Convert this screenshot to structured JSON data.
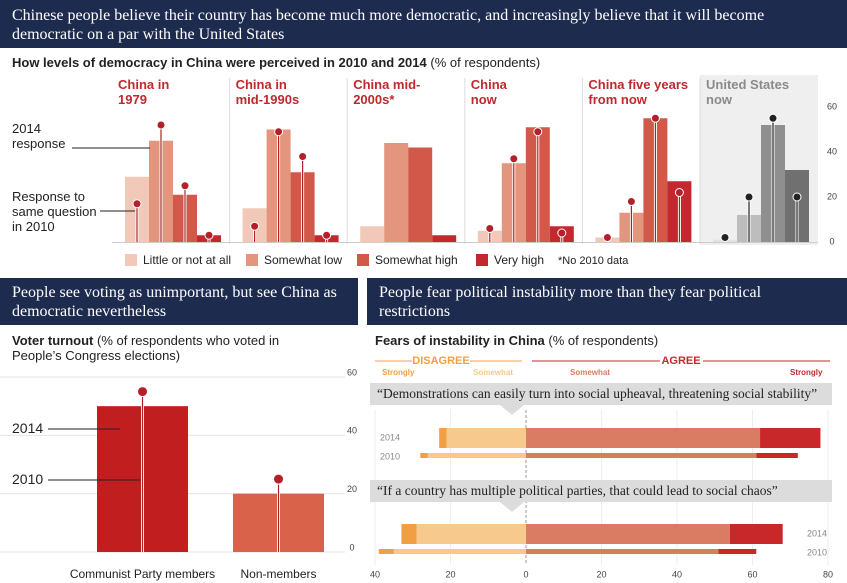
{
  "header": {
    "title": "Chinese people believe their country has become much more democratic, and increasingly believe that it will become democratic on a par with the United States"
  },
  "chart_data": [
    {
      "type": "panel-bar",
      "title": "How levels of democracy in China were perceived in 2010 and 2014",
      "subtitle": "(% of respondents)",
      "categories": [
        "Little or not at all",
        "Somewhat low",
        "Somewhat high",
        "Very high"
      ],
      "colors": [
        "#f2c9b9",
        "#e3957e",
        "#d2594a",
        "#c4282f"
      ],
      "annotations": [
        "2014 response",
        "Response to same question in 2010",
        "*No 2010 data"
      ],
      "ylim": [
        0,
        60
      ],
      "yticks": [
        0,
        20,
        40,
        60
      ],
      "panels": [
        {
          "name": "China in 1979",
          "title_color": "#c0282e",
          "dot_color": "#b3202a",
          "values": [
            29,
            45,
            21,
            3
          ],
          "values_2010": [
            17,
            52,
            25,
            3
          ]
        },
        {
          "name": "China in mid-1990s",
          "title_color": "#c0282e",
          "dot_color": "#b3202a",
          "values": [
            15,
            50,
            31,
            3
          ],
          "values_2010": [
            7,
            49,
            38,
            3
          ]
        },
        {
          "name": "China mid-2000s*",
          "title_color": "#c0282e",
          "dot_color": "#b3202a",
          "values": [
            7,
            44,
            42,
            3
          ],
          "values_2010": [
            null,
            null,
            null,
            null
          ]
        },
        {
          "name": "China now",
          "title_color": "#c0282e",
          "dot_color": "#b3202a",
          "values": [
            5,
            35,
            51,
            7
          ],
          "values_2010": [
            6,
            37,
            49,
            4
          ]
        },
        {
          "name": "China five years from now",
          "title_color": "#c0282e",
          "dot_color": "#b3202a",
          "values": [
            2,
            13,
            55,
            27
          ],
          "values_2010": [
            2,
            18,
            55,
            22
          ]
        },
        {
          "name": "United States now",
          "title_color": "#8a8a8a",
          "dot_color": "#222222",
          "background": "#efefef",
          "colors": [
            "#e2e2e2",
            "#bdbdbd",
            "#8f8f8f",
            "#707070"
          ],
          "values": [
            1,
            12,
            52,
            32
          ],
          "values_2010": [
            2,
            20,
            55,
            20
          ]
        }
      ]
    },
    {
      "type": "bar",
      "heading": "People see voting as unimportant, but see China as democratic nevertheless",
      "title": "Voter turnout",
      "subtitle": "(% of respondents who voted in People’s Congress elections)",
      "categories": [
        "Communist Party members",
        "Non-members"
      ],
      "values": [
        50,
        20
      ],
      "values_2010": [
        55,
        25
      ],
      "colors": [
        "#c11f1f",
        "#d8624a"
      ],
      "dot_color": "#b3202a",
      "annotations": [
        "2014",
        "2010"
      ],
      "ylim": [
        0,
        60
      ],
      "yticks": [
        0,
        20,
        40,
        60
      ],
      "grid": true
    },
    {
      "type": "diverging-bar",
      "heading": "People fear political instability more than they fear political restrictions",
      "title": "Fears of instability in China",
      "subtitle": "(% of respondents)",
      "groups": [
        "DISAGREE",
        "AGREE"
      ],
      "categories": [
        "“Demonstrations can easily turn into social upheaval, threatening social stability”",
        "“If a country has multiple political parties, that could lead to social chaos”"
      ],
      "rows": [
        "2014",
        "2010"
      ],
      "series": [
        {
          "name": "Strongly",
          "color": "#f0a043",
          "values": [
            [
              -2,
              -2
            ],
            [
              -4,
              -4
            ]
          ]
        },
        {
          "name": "Somewhat",
          "color": "#f8c98c",
          "values": [
            [
              -21,
              -26
            ],
            [
              -29,
              -35
            ]
          ]
        },
        {
          "name": "Somewhat",
          "color": "#d97c63",
          "values": [
            [
              62,
              61
            ],
            [
              54,
              51
            ]
          ]
        },
        {
          "name": "Strongly",
          "color": "#c9282b",
          "values": [
            [
              16,
              11
            ],
            [
              14,
              10
            ]
          ]
        }
      ],
      "xlim": [
        -40,
        80
      ],
      "xticks": [
        {
          "value": -40,
          "label": "40"
        },
        {
          "value": -20,
          "label": "20"
        },
        0,
        20,
        40,
        60,
        80
      ],
      "grid": true
    }
  ]
}
